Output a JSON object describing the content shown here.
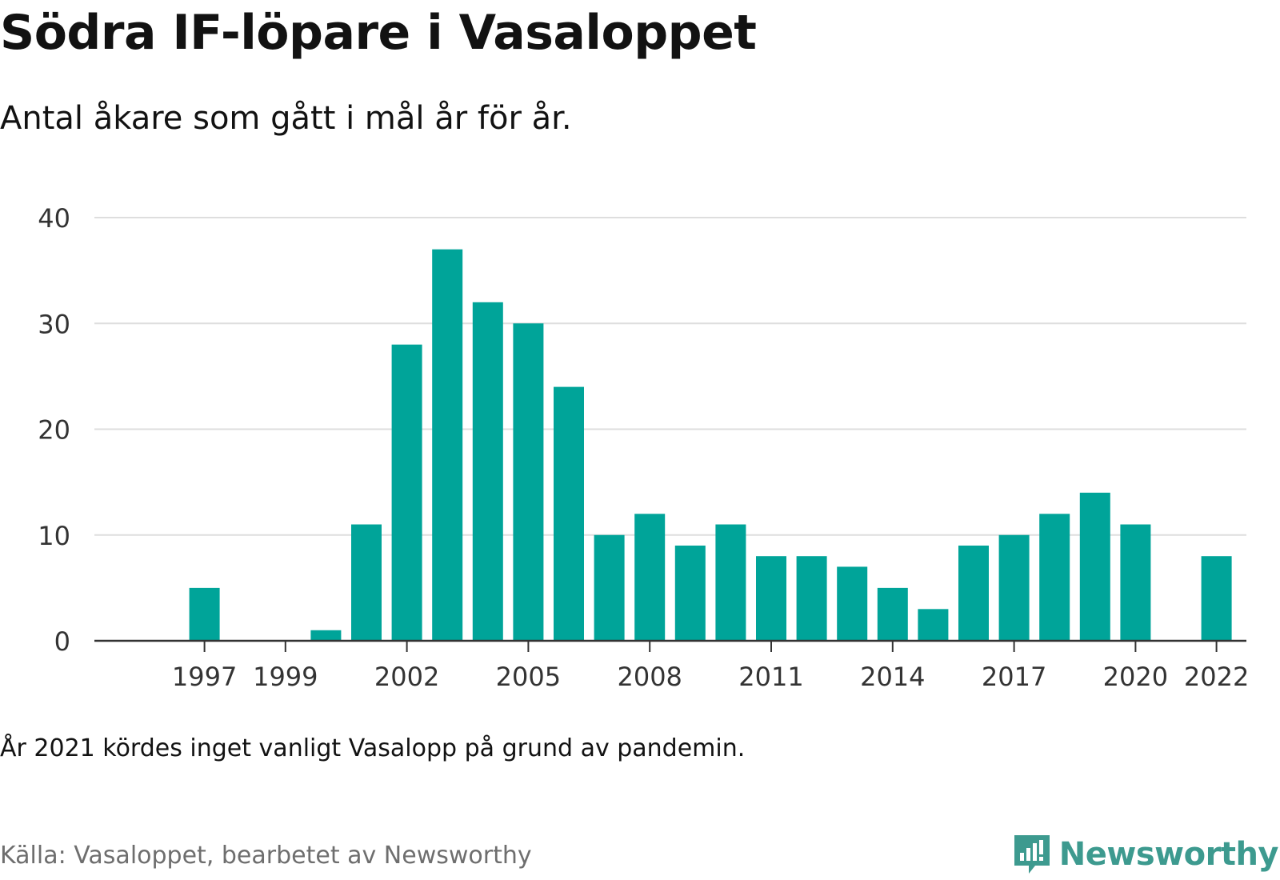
{
  "title": "Södra IF-löpare i Vasaloppet",
  "subtitle": "Antal åkare som gått i mål år för år.",
  "note": "År 2021 kördes inget vanligt Vasalopp på grund av pandemin.",
  "source": "Källa: Vasaloppet, bearbetet av Newsworthy",
  "brand": {
    "name": "Newsworthy",
    "icon": "newsworthy-logo-icon",
    "color": "#3d9a8f"
  },
  "chart_data": {
    "type": "bar",
    "categories": [
      1996,
      1997,
      1998,
      1999,
      2000,
      2001,
      2002,
      2003,
      2004,
      2005,
      2006,
      2007,
      2008,
      2009,
      2010,
      2011,
      2012,
      2013,
      2014,
      2015,
      2016,
      2017,
      2018,
      2019,
      2020,
      2021,
      2022
    ],
    "values": [
      0,
      5,
      0,
      0,
      1,
      11,
      28,
      37,
      32,
      30,
      24,
      10,
      12,
      9,
      11,
      8,
      8,
      7,
      5,
      3,
      9,
      10,
      12,
      14,
      11,
      0,
      8
    ],
    "x_tick_labels": [
      "1997",
      "1999",
      "2002",
      "2005",
      "2008",
      "2011",
      "2014",
      "2017",
      "2020",
      "2022"
    ],
    "y_ticks": [
      0,
      10,
      20,
      30,
      40
    ],
    "ylim": [
      0,
      40
    ],
    "grid": true,
    "bar_color": "#00a499",
    "xlabel": "",
    "ylabel": ""
  }
}
